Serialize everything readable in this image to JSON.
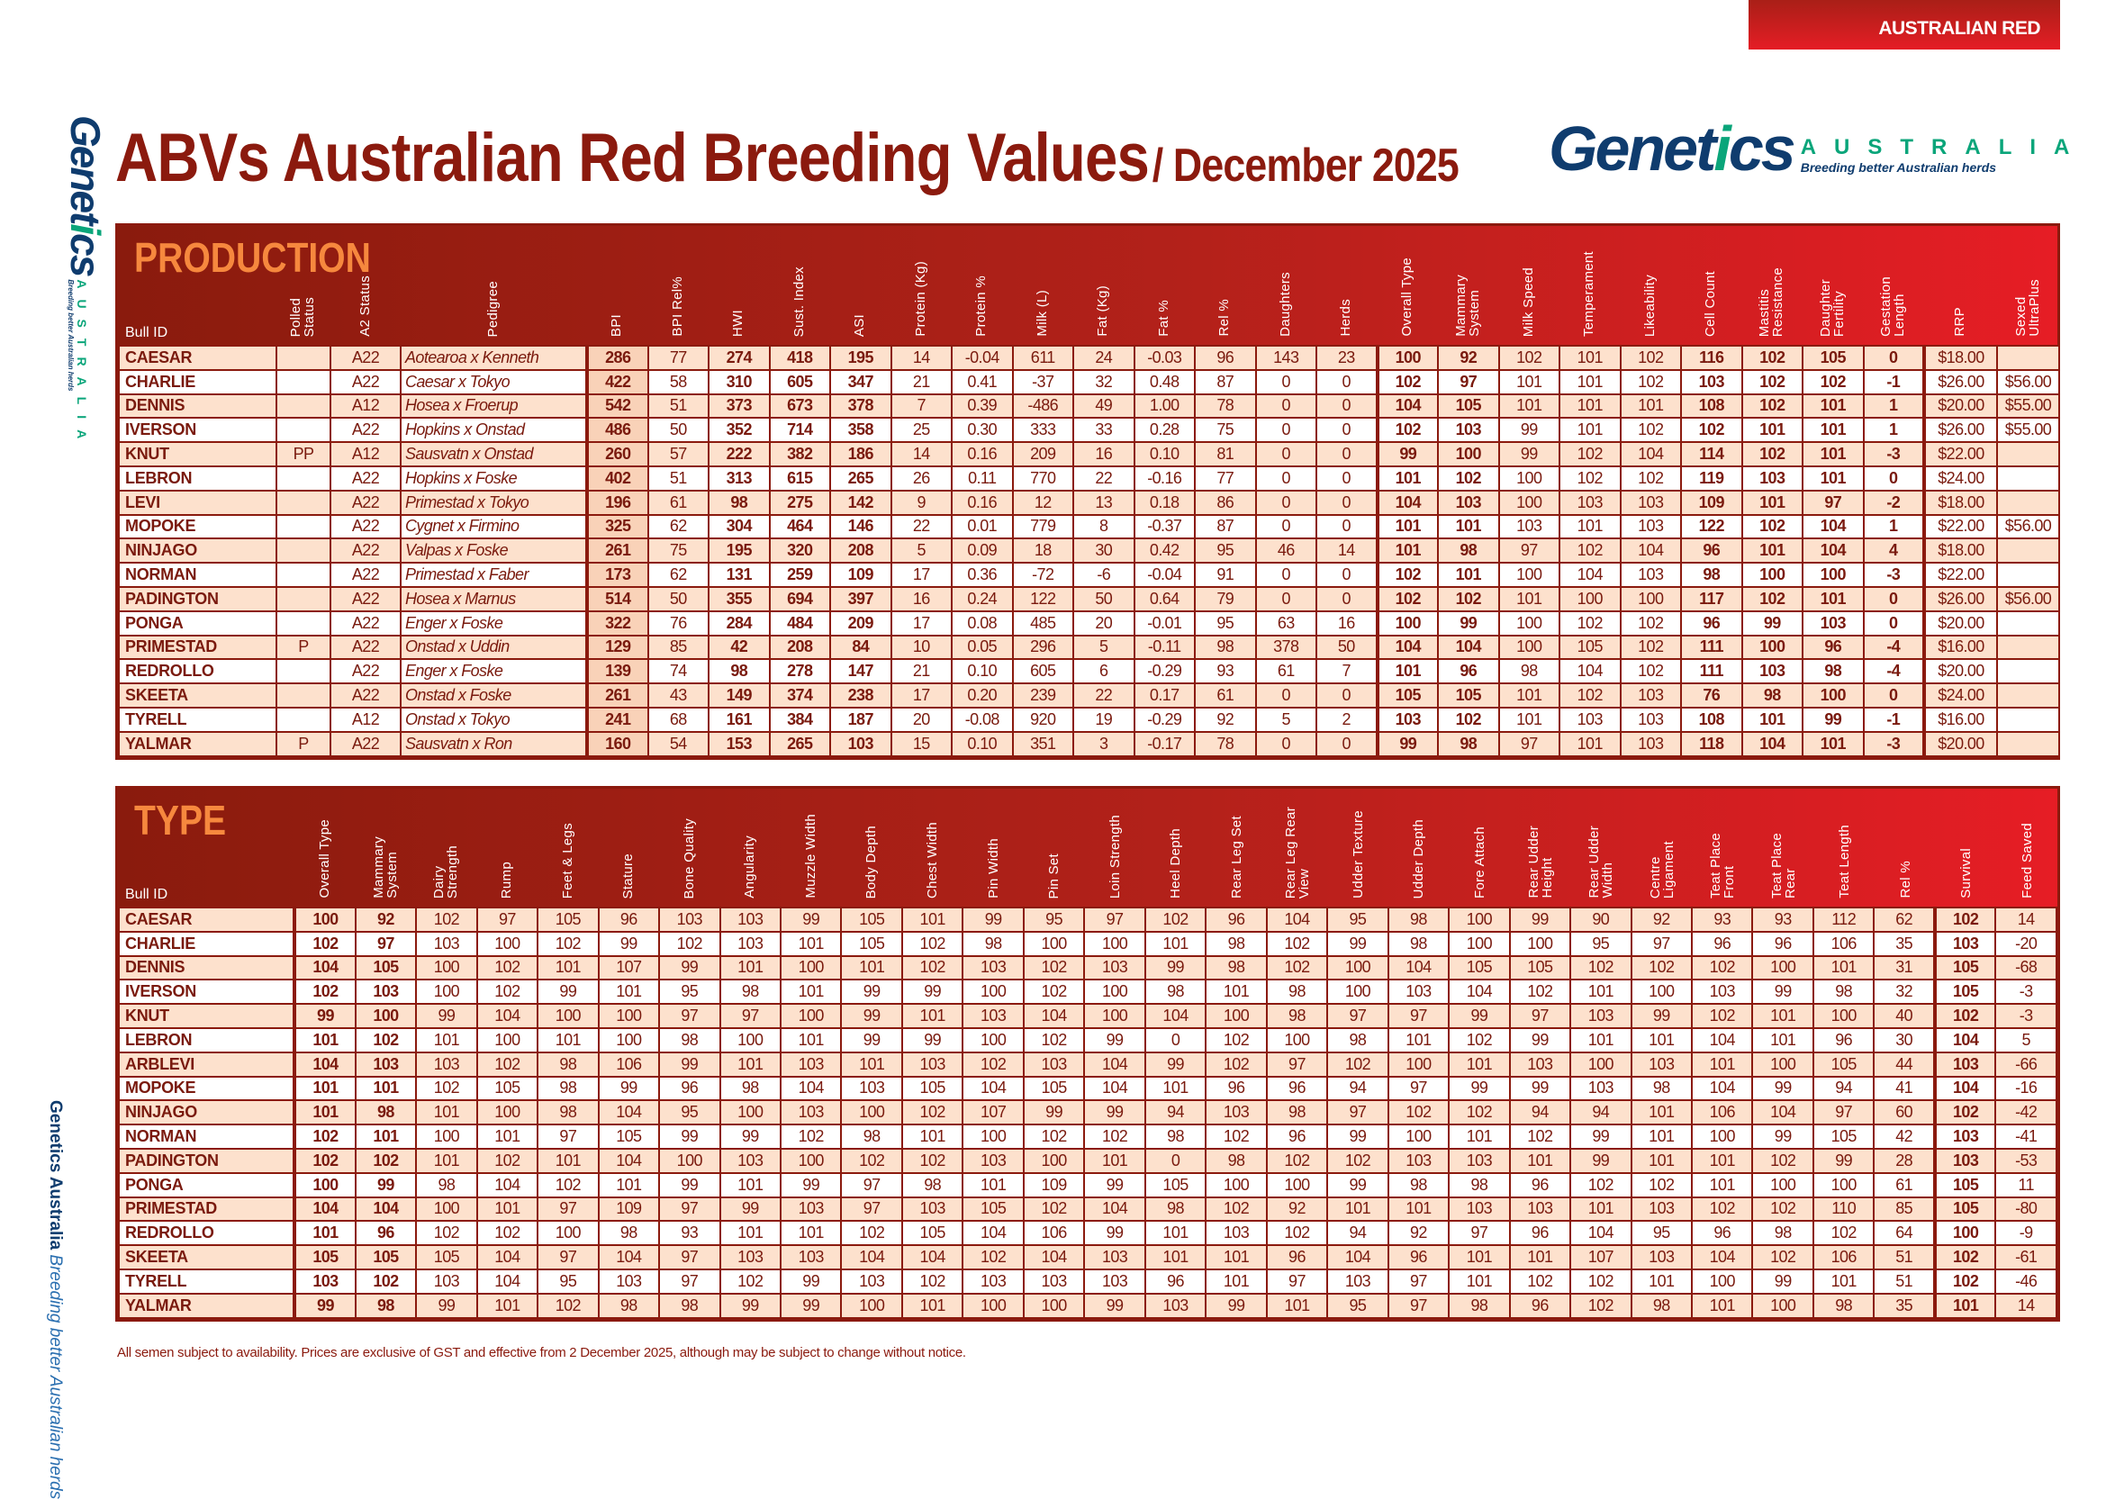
{
  "header": {
    "tag": "AUSTRALIAN RED",
    "title": "ABVs Australian Red Breeding Values",
    "subtitle": "/ December 2025",
    "logo_word_a": "Genet",
    "logo_word_i": "i",
    "logo_word_b": "cs",
    "logo_country": "AUSTRALIA",
    "logo_tagline": "Breeding better Australian herds"
  },
  "side_text": {
    "brand": "Genetics Australia",
    "tagline": "Breeding better Australian herds"
  },
  "production": {
    "title": "PRODUCTION",
    "bull_id_label": "Bull ID",
    "columns": [
      "Polled\nStatus",
      "A2 Status",
      "Pedigree",
      "BPI",
      "BPI Rel%",
      "HWI",
      "Sust. Index",
      "ASI",
      "Protein (Kg)",
      "Protein %",
      "Milk (L)",
      "Fat (Kg)",
      "Fat %",
      "Rel %",
      "Daughters",
      "Herds",
      "Overall Type",
      "Mammary\nSystem",
      "Milk Speed",
      "Temperament",
      "Likeability",
      "Cell Count",
      "Mastitis\nResistance",
      "Daughter\nFertility",
      "Gestation\nLength",
      "RRP",
      "Sexed\nUltraPlus"
    ],
    "rows": [
      [
        "CAESAR",
        "",
        "A22",
        "Aotearoa x Kenneth",
        "286",
        "77",
        "274",
        "418",
        "195",
        "14",
        "-0.04",
        "611",
        "24",
        "-0.03",
        "96",
        "143",
        "23",
        "100",
        "92",
        "102",
        "101",
        "102",
        "116",
        "102",
        "105",
        "0",
        "$18.00",
        ""
      ],
      [
        "CHARLIE",
        "",
        "A22",
        "Caesar x Tokyo",
        "422",
        "58",
        "310",
        "605",
        "347",
        "21",
        "0.41",
        "-37",
        "32",
        "0.48",
        "87",
        "0",
        "0",
        "102",
        "97",
        "101",
        "101",
        "102",
        "103",
        "102",
        "102",
        "-1",
        "$26.00",
        "$56.00"
      ],
      [
        "DENNIS",
        "",
        "A12",
        "Hosea x Froerup",
        "542",
        "51",
        "373",
        "673",
        "378",
        "7",
        "0.39",
        "-486",
        "49",
        "1.00",
        "78",
        "0",
        "0",
        "104",
        "105",
        "101",
        "101",
        "101",
        "108",
        "102",
        "101",
        "1",
        "$20.00",
        "$55.00"
      ],
      [
        "IVERSON",
        "",
        "A22",
        "Hopkins x Onstad",
        "486",
        "50",
        "352",
        "714",
        "358",
        "25",
        "0.30",
        "333",
        "33",
        "0.28",
        "75",
        "0",
        "0",
        "102",
        "103",
        "99",
        "101",
        "102",
        "102",
        "101",
        "101",
        "1",
        "$26.00",
        "$55.00"
      ],
      [
        "KNUT",
        "PP",
        "A12",
        "Sausvatn x Onstad",
        "260",
        "57",
        "222",
        "382",
        "186",
        "14",
        "0.16",
        "209",
        "16",
        "0.10",
        "81",
        "0",
        "0",
        "99",
        "100",
        "99",
        "102",
        "104",
        "114",
        "102",
        "101",
        "-3",
        "$22.00",
        ""
      ],
      [
        "LEBRON",
        "",
        "A22",
        "Hopkins x Foske",
        "402",
        "51",
        "313",
        "615",
        "265",
        "26",
        "0.11",
        "770",
        "22",
        "-0.16",
        "77",
        "0",
        "0",
        "101",
        "102",
        "100",
        "102",
        "102",
        "119",
        "103",
        "101",
        "0",
        "$24.00",
        ""
      ],
      [
        "LEVI",
        "",
        "A22",
        "Primestad x Tokyo",
        "196",
        "61",
        "98",
        "275",
        "142",
        "9",
        "0.16",
        "12",
        "13",
        "0.18",
        "86",
        "0",
        "0",
        "104",
        "103",
        "100",
        "103",
        "103",
        "109",
        "101",
        "97",
        "-2",
        "$18.00",
        ""
      ],
      [
        "MOPOKE",
        "",
        "A22",
        "Cygnet x Firmino",
        "325",
        "62",
        "304",
        "464",
        "146",
        "22",
        "0.01",
        "779",
        "8",
        "-0.37",
        "87",
        "0",
        "0",
        "101",
        "101",
        "103",
        "101",
        "103",
        "122",
        "102",
        "104",
        "1",
        "$22.00",
        "$56.00"
      ],
      [
        "NINJAGO",
        "",
        "A22",
        "Valpas x Foske",
        "261",
        "75",
        "195",
        "320",
        "208",
        "5",
        "0.09",
        "18",
        "30",
        "0.42",
        "95",
        "46",
        "14",
        "101",
        "98",
        "97",
        "102",
        "104",
        "96",
        "101",
        "104",
        "4",
        "$18.00",
        ""
      ],
      [
        "NORMAN",
        "",
        "A22",
        "Primestad x Faber",
        "173",
        "62",
        "131",
        "259",
        "109",
        "17",
        "0.36",
        "-72",
        "-6",
        "-0.04",
        "91",
        "0",
        "0",
        "102",
        "101",
        "100",
        "104",
        "103",
        "98",
        "100",
        "100",
        "-3",
        "$22.00",
        ""
      ],
      [
        "PADINGTON",
        "",
        "A22",
        "Hosea x Marnus",
        "514",
        "50",
        "355",
        "694",
        "397",
        "16",
        "0.24",
        "122",
        "50",
        "0.64",
        "79",
        "0",
        "0",
        "102",
        "102",
        "101",
        "100",
        "100",
        "117",
        "102",
        "101",
        "0",
        "$26.00",
        "$56.00"
      ],
      [
        "PONGA",
        "",
        "A22",
        "Enger x Foske",
        "322",
        "76",
        "284",
        "484",
        "209",
        "17",
        "0.08",
        "485",
        "20",
        "-0.01",
        "95",
        "63",
        "16",
        "100",
        "99",
        "100",
        "102",
        "102",
        "96",
        "99",
        "103",
        "0",
        "$20.00",
        ""
      ],
      [
        "PRIMESTAD",
        "P",
        "A22",
        "Onstad x Uddin",
        "129",
        "85",
        "42",
        "208",
        "84",
        "10",
        "0.05",
        "296",
        "5",
        "-0.11",
        "98",
        "378",
        "50",
        "104",
        "104",
        "100",
        "105",
        "102",
        "111",
        "100",
        "96",
        "-4",
        "$16.00",
        ""
      ],
      [
        "REDROLLO",
        "",
        "A22",
        "Enger x Foske",
        "139",
        "74",
        "98",
        "278",
        "147",
        "21",
        "0.10",
        "605",
        "6",
        "-0.29",
        "93",
        "61",
        "7",
        "101",
        "96",
        "98",
        "104",
        "102",
        "111",
        "103",
        "98",
        "-4",
        "$20.00",
        ""
      ],
      [
        "SKEETA",
        "",
        "A22",
        "Onstad x Foske",
        "261",
        "43",
        "149",
        "374",
        "238",
        "17",
        "0.20",
        "239",
        "22",
        "0.17",
        "61",
        "0",
        "0",
        "105",
        "105",
        "101",
        "102",
        "103",
        "76",
        "98",
        "100",
        "0",
        "$24.00",
        ""
      ],
      [
        "TYRELL",
        "",
        "A12",
        "Onstad x Tokyo",
        "241",
        "68",
        "161",
        "384",
        "187",
        "20",
        "-0.08",
        "920",
        "19",
        "-0.29",
        "92",
        "5",
        "2",
        "103",
        "102",
        "101",
        "103",
        "103",
        "108",
        "101",
        "99",
        "-1",
        "$16.00",
        ""
      ],
      [
        "YALMAR",
        "P",
        "A22",
        "Sausvatn x Ron",
        "160",
        "54",
        "153",
        "265",
        "103",
        "15",
        "0.10",
        "351",
        "3",
        "-0.17",
        "78",
        "0",
        "0",
        "99",
        "98",
        "97",
        "101",
        "103",
        "118",
        "104",
        "101",
        "-3",
        "$20.00",
        ""
      ]
    ]
  },
  "type": {
    "title": "TYPE",
    "bull_id_label": "Bull ID",
    "columns": [
      "Overall Type",
      "Mammary\nSystem",
      "Dairy\nStrength",
      "Rump",
      "Feet & Legs",
      "Stature",
      "Bone Quality",
      "Angularity",
      "Muzzle Width",
      "Body Depth",
      "Chest Width",
      "Pin Width",
      "Pin Set",
      "Loin Strength",
      "Heel Depth",
      "Rear Leg Set",
      "Rear Leg Rear\nView",
      "Udder Texture",
      "Udder Depth",
      "Fore Attach",
      "Rear Udder\nHeight",
      "Rear Udder\nWidth",
      "Centre\nLigament",
      "Teat Place\nFront",
      "Teat Place\nRear",
      "Teat Length",
      "Rel %",
      "Survival",
      "Feed Saved"
    ],
    "rows": [
      [
        "CAESAR",
        "100",
        "92",
        "102",
        "97",
        "105",
        "96",
        "103",
        "103",
        "99",
        "105",
        "101",
        "99",
        "95",
        "97",
        "102",
        "96",
        "104",
        "95",
        "98",
        "100",
        "99",
        "90",
        "92",
        "93",
        "93",
        "112",
        "62",
        "102",
        "14"
      ],
      [
        "CHARLIE",
        "102",
        "97",
        "103",
        "100",
        "102",
        "99",
        "102",
        "103",
        "101",
        "105",
        "102",
        "98",
        "100",
        "100",
        "101",
        "98",
        "102",
        "99",
        "98",
        "100",
        "100",
        "95",
        "97",
        "96",
        "96",
        "106",
        "35",
        "103",
        "-20"
      ],
      [
        "DENNIS",
        "104",
        "105",
        "100",
        "102",
        "101",
        "107",
        "99",
        "101",
        "100",
        "101",
        "102",
        "103",
        "102",
        "103",
        "99",
        "98",
        "102",
        "100",
        "104",
        "105",
        "105",
        "102",
        "102",
        "102",
        "100",
        "101",
        "31",
        "105",
        "-68"
      ],
      [
        "IVERSON",
        "102",
        "103",
        "100",
        "102",
        "99",
        "101",
        "95",
        "98",
        "101",
        "99",
        "99",
        "100",
        "102",
        "100",
        "98",
        "101",
        "98",
        "100",
        "103",
        "104",
        "102",
        "101",
        "100",
        "103",
        "99",
        "98",
        "32",
        "105",
        "-3"
      ],
      [
        "KNUT",
        "99",
        "100",
        "99",
        "104",
        "100",
        "100",
        "97",
        "97",
        "100",
        "99",
        "101",
        "103",
        "104",
        "100",
        "104",
        "100",
        "98",
        "97",
        "97",
        "99",
        "97",
        "103",
        "99",
        "102",
        "101",
        "100",
        "40",
        "102",
        "-3"
      ],
      [
        "LEBRON",
        "101",
        "102",
        "101",
        "100",
        "101",
        "100",
        "98",
        "100",
        "101",
        "99",
        "99",
        "100",
        "102",
        "99",
        "0",
        "102",
        "100",
        "98",
        "101",
        "102",
        "99",
        "101",
        "101",
        "104",
        "101",
        "96",
        "30",
        "104",
        "5"
      ],
      [
        "ARBLEVI",
        "104",
        "103",
        "103",
        "102",
        "98",
        "106",
        "99",
        "101",
        "103",
        "101",
        "103",
        "102",
        "103",
        "104",
        "99",
        "102",
        "97",
        "102",
        "100",
        "101",
        "103",
        "100",
        "103",
        "101",
        "100",
        "105",
        "44",
        "103",
        "-66"
      ],
      [
        "MOPOKE",
        "101",
        "101",
        "102",
        "105",
        "98",
        "99",
        "96",
        "98",
        "104",
        "103",
        "105",
        "104",
        "105",
        "104",
        "101",
        "96",
        "96",
        "94",
        "97",
        "99",
        "99",
        "103",
        "98",
        "104",
        "99",
        "94",
        "41",
        "104",
        "-16"
      ],
      [
        "NINJAGO",
        "101",
        "98",
        "101",
        "100",
        "98",
        "104",
        "95",
        "100",
        "103",
        "100",
        "102",
        "107",
        "99",
        "99",
        "94",
        "103",
        "98",
        "97",
        "102",
        "102",
        "94",
        "94",
        "101",
        "106",
        "104",
        "97",
        "60",
        "102",
        "-42"
      ],
      [
        "NORMAN",
        "102",
        "101",
        "100",
        "101",
        "97",
        "105",
        "99",
        "99",
        "102",
        "98",
        "101",
        "100",
        "102",
        "102",
        "98",
        "102",
        "96",
        "99",
        "100",
        "101",
        "102",
        "99",
        "101",
        "100",
        "99",
        "105",
        "42",
        "103",
        "-41"
      ],
      [
        "PADINGTON",
        "102",
        "102",
        "101",
        "102",
        "101",
        "104",
        "100",
        "103",
        "100",
        "102",
        "102",
        "103",
        "100",
        "101",
        "0",
        "98",
        "102",
        "102",
        "103",
        "103",
        "101",
        "99",
        "101",
        "101",
        "102",
        "99",
        "28",
        "103",
        "-53"
      ],
      [
        "PONGA",
        "100",
        "99",
        "98",
        "104",
        "102",
        "101",
        "99",
        "101",
        "99",
        "97",
        "98",
        "101",
        "109",
        "99",
        "105",
        "100",
        "100",
        "99",
        "98",
        "98",
        "96",
        "102",
        "102",
        "101",
        "100",
        "100",
        "61",
        "105",
        "11"
      ],
      [
        "PRIMESTAD",
        "104",
        "104",
        "100",
        "101",
        "97",
        "109",
        "97",
        "99",
        "103",
        "97",
        "103",
        "105",
        "102",
        "104",
        "98",
        "102",
        "92",
        "101",
        "101",
        "103",
        "103",
        "101",
        "103",
        "102",
        "102",
        "110",
        "85",
        "105",
        "-80"
      ],
      [
        "REDROLLO",
        "101",
        "96",
        "102",
        "102",
        "100",
        "98",
        "93",
        "101",
        "101",
        "102",
        "105",
        "104",
        "106",
        "99",
        "101",
        "103",
        "102",
        "94",
        "92",
        "97",
        "96",
        "104",
        "95",
        "96",
        "98",
        "102",
        "64",
        "100",
        "-9"
      ],
      [
        "SKEETA",
        "105",
        "105",
        "105",
        "104",
        "97",
        "104",
        "97",
        "103",
        "103",
        "104",
        "104",
        "102",
        "104",
        "103",
        "101",
        "101",
        "96",
        "104",
        "96",
        "101",
        "101",
        "107",
        "103",
        "104",
        "102",
        "106",
        "51",
        "102",
        "-61"
      ],
      [
        "TYRELL",
        "103",
        "102",
        "103",
        "104",
        "95",
        "103",
        "97",
        "102",
        "99",
        "103",
        "102",
        "103",
        "103",
        "103",
        "96",
        "101",
        "97",
        "103",
        "97",
        "101",
        "102",
        "102",
        "101",
        "100",
        "99",
        "101",
        "51",
        "102",
        "-46"
      ],
      [
        "YALMAR",
        "99",
        "98",
        "99",
        "101",
        "102",
        "98",
        "98",
        "99",
        "99",
        "100",
        "101",
        "100",
        "100",
        "99",
        "103",
        "99",
        "101",
        "95",
        "97",
        "98",
        "96",
        "102",
        "98",
        "101",
        "100",
        "98",
        "35",
        "101",
        "14"
      ]
    ]
  },
  "footer": "All semen subject to availability. Prices are exclusive of GST and effective from 2 December 2025,  although may be subject to change without notice.",
  "colors": {
    "header_dark": "#8a1b0d",
    "header_bright": "#e61d25",
    "row_stripe": "#fde1cd",
    "section_title": "#f6883e",
    "brand_blue": "#0f3c6e",
    "brand_green": "#0aa57a"
  }
}
